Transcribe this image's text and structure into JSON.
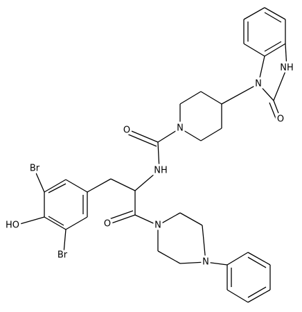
{
  "atoms": [
    "NH",
    "N",
    "O",
    "N",
    "O",
    "NH",
    "Br",
    "HO",
    "Br",
    "O",
    "N",
    "N"
  ]
}
